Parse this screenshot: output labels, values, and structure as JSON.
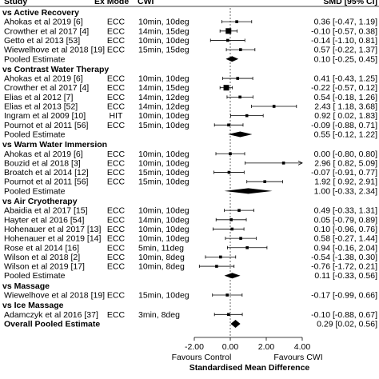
{
  "chart_data": {
    "type": "forest",
    "columns": {
      "study": "Study",
      "mode": "Ex Mode",
      "cwi": "CWI",
      "effect": "SMD [95% CI]"
    },
    "xlabel": "Standardised Mean Difference",
    "xlim": [
      -2.0,
      4.0
    ],
    "xticks": [
      -2.0,
      0.0,
      2.0,
      4.0
    ],
    "xtick_labels": [
      "-2.00",
      "0.00",
      "2.00",
      "4.00"
    ],
    "favours_left": "Favours Control",
    "favours_right": "Favours CWI",
    "rows": [
      {
        "kind": "header",
        "label": "vs Active Recovery"
      },
      {
        "kind": "study",
        "label": "Ahokas et al 2019 [6]",
        "mode": "ECC",
        "cwi": "10min, 10deg",
        "est": 0.36,
        "lo": -0.47,
        "hi": 1.19,
        "ci": "0.36 [-0.47, 1.19]",
        "w": 1
      },
      {
        "kind": "study",
        "label": "Crowther et al 2017 [4]",
        "mode": "ECC",
        "cwi": "14min, 15deg",
        "est": -0.1,
        "lo": -0.57,
        "hi": 0.38,
        "ci": "-0.10 [-0.57, 0.38]",
        "w": 2
      },
      {
        "kind": "study",
        "label": "Getto et al 2013 [53]",
        "mode": "ECC",
        "cwi": "10min, 10deg",
        "est": -0.14,
        "lo": -1.1,
        "hi": 0.81,
        "ci": "-0.14 [-1.10, 0.81]",
        "w": 1
      },
      {
        "kind": "study",
        "label": "Wiewelhove et al 2018 [19]",
        "mode": "ECC",
        "cwi": "15min, 15deg",
        "est": 0.57,
        "lo": -0.22,
        "hi": 1.37,
        "ci": "0.57 [-0.22, 1.37]",
        "w": 1
      },
      {
        "kind": "pooled",
        "label": "Pooled Estimate",
        "est": 0.1,
        "lo": -0.25,
        "hi": 0.45,
        "ci": "0.10 [-0.25, 0.45]"
      },
      {
        "kind": "header",
        "label": "vs Contrast Water Therapy"
      },
      {
        "kind": "study",
        "label": "Ahokas et al 2019 [6]",
        "mode": "ECC",
        "cwi": "10min, 10deg",
        "est": 0.41,
        "lo": -0.43,
        "hi": 1.25,
        "ci": "0.41 [-0.43, 1.25]",
        "w": 1
      },
      {
        "kind": "study",
        "label": "Crowther et al 2017 [4]",
        "mode": "ECC",
        "cwi": "14min, 15deg",
        "est": -0.22,
        "lo": -0.57,
        "hi": 0.12,
        "ci": "-0.22 [-0.57, 0.12]",
        "w": 2
      },
      {
        "kind": "study",
        "label": "Elias et al 2012 [7]",
        "mode": "ECC",
        "cwi": "14min, 12deg",
        "est": 0.54,
        "lo": -0.18,
        "hi": 1.26,
        "ci": "0.54 [-0.18, 1.26]",
        "w": 1
      },
      {
        "kind": "study",
        "label": "Elias et al 2013 [52]",
        "mode": "ECC",
        "cwi": "14min, 12deg",
        "est": 2.43,
        "lo": 1.18,
        "hi": 3.68,
        "ci": "2.43 [ 1.18, 3.68]",
        "w": 1
      },
      {
        "kind": "study",
        "label": "Ingram et al 2009 [10]",
        "mode": "HIT",
        "cwi": "10min, 10deg",
        "est": 0.92,
        "lo": 0.02,
        "hi": 1.83,
        "ci": "0.92 [ 0.02, 1.83]",
        "w": 1
      },
      {
        "kind": "study",
        "label": "Pournot et al 2011 [56]",
        "mode": "ECC",
        "cwi": "15min, 10deg",
        "est": -0.09,
        "lo": -0.88,
        "hi": 0.71,
        "ci": "-0.09 [-0.88, 0.71]",
        "w": 1
      },
      {
        "kind": "pooled",
        "label": "Pooled Estimate",
        "est": 0.55,
        "lo": -0.12,
        "hi": 1.22,
        "ci": "0.55 [-0.12, 1.22]"
      },
      {
        "kind": "header",
        "label": "vs Warm Water Immersion"
      },
      {
        "kind": "study",
        "label": "Ahokas et al 2019 [6]",
        "mode": "ECC",
        "cwi": "10min, 10deg",
        "est": 0.0,
        "lo": -0.8,
        "hi": 0.8,
        "ci": "0.00 [-0.80, 0.80]",
        "w": 1
      },
      {
        "kind": "study",
        "label": "Bouzid et al 2018 [3]",
        "mode": "ECC",
        "cwi": "10min, 10deg",
        "est": 2.96,
        "lo": 0.82,
        "hi": 5.09,
        "ci": "2.96 [ 0.82, 5.09]",
        "w": 1
      },
      {
        "kind": "study",
        "label": "Broatch et al 2014 [12]",
        "mode": "ECC",
        "cwi": "15min, 10deg",
        "est": -0.07,
        "lo": -0.91,
        "hi": 0.77,
        "ci": "-0.07 [-0.91, 0.77]",
        "w": 1
      },
      {
        "kind": "study",
        "label": "Pournot et al 2011 [56]",
        "mode": "ECC",
        "cwi": "15min, 10deg",
        "est": 1.92,
        "lo": 0.92,
        "hi": 2.91,
        "ci": "1.92 [ 0.92, 2.91]",
        "w": 1
      },
      {
        "kind": "pooled",
        "label": "Pooled Estimate",
        "est": 1.0,
        "lo": -0.33,
        "hi": 2.34,
        "ci": "1.00 [-0.33, 2.34]"
      },
      {
        "kind": "header",
        "label": "vs Air Cryotherapy"
      },
      {
        "kind": "study",
        "label": "Abaidia et al 2017 [15]",
        "mode": "ECC",
        "cwi": "10min, 10deg",
        "est": 0.49,
        "lo": -0.33,
        "hi": 1.31,
        "ci": "0.49 [-0.33, 1.31]",
        "w": 1
      },
      {
        "kind": "study",
        "label": "Hayter et al 2016 [54]",
        "mode": "ECC",
        "cwi": "14min, 10deg",
        "est": 0.05,
        "lo": -0.79,
        "hi": 0.89,
        "ci": "0.05 [-0.79, 0.89]",
        "w": 1
      },
      {
        "kind": "study",
        "label": "Hohenauer et al 2017 [13]",
        "mode": "ECC",
        "cwi": "10min, 10deg",
        "est": 0.1,
        "lo": -0.96,
        "hi": 0.76,
        "ci": "0.10 [-0.96, 0.76]",
        "w": 1
      },
      {
        "kind": "study",
        "label": "Hohenauer et al 2019 [14]",
        "mode": "ECC",
        "cwi": "10min, 10deg",
        "est": 0.58,
        "lo": -0.27,
        "hi": 1.44,
        "ci": "0.58 [-0.27, 1.44]",
        "w": 1
      },
      {
        "kind": "study",
        "label": "Rose et al 2014 [16]",
        "mode": "ECC",
        "cwi": "5min, 11deg",
        "est": 0.94,
        "lo": -0.16,
        "hi": 2.04,
        "ci": "0.94 [-0.16, 2.04]",
        "w": 1
      },
      {
        "kind": "study",
        "label": "Wilson et al 2018 [2]",
        "mode": "ECC",
        "cwi": "10min, 8deg",
        "est": -0.54,
        "lo": -1.38,
        "hi": 0.3,
        "ci": "-0.54 [-1.38, 0.30]",
        "w": 1
      },
      {
        "kind": "study",
        "label": "Wilson et al 2019 [17]",
        "mode": "ECC",
        "cwi": "10min, 8deg",
        "est": -0.76,
        "lo": -1.72,
        "hi": 0.21,
        "ci": "-0.76 [-1.72, 0.21]",
        "w": 1
      },
      {
        "kind": "pooled",
        "label": "Pooled Estimate",
        "est": 0.11,
        "lo": -0.33,
        "hi": 0.56,
        "ci": "0.11 [-0.33, 0.56]"
      },
      {
        "kind": "header",
        "label": "vs Massage"
      },
      {
        "kind": "study",
        "label": "Wiewelhove et al 2018 [19]",
        "mode": "ECC",
        "cwi": "15min, 10deg",
        "est": -0.17,
        "lo": -0.99,
        "hi": 0.66,
        "ci": "-0.17 [-0.99, 0.66]",
        "w": 1
      },
      {
        "kind": "header",
        "label": "vs Ice Massage"
      },
      {
        "kind": "study",
        "label": "Adamczyk et al 2016 [37]",
        "mode": "ECC",
        "cwi": "3min, 8deg",
        "est": -0.1,
        "lo": -0.88,
        "hi": 0.67,
        "ci": "-0.10 [-0.88, 0.67]",
        "w": 1
      },
      {
        "kind": "overall",
        "label": "Overall Pooled Estimate",
        "est": 0.29,
        "lo": 0.02,
        "hi": 0.56,
        "ci": "0.29 [0.02, 0.56]"
      }
    ]
  }
}
